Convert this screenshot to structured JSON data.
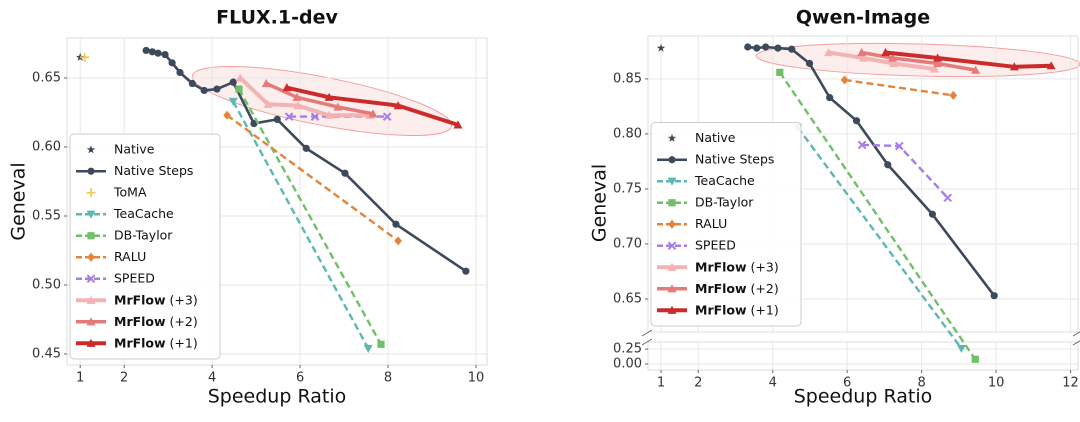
{
  "chart_data": [
    {
      "type": "line",
      "title": "FLUX.1-dev",
      "x_label": "Speedup Ratio",
      "y_label": "Geneval",
      "xlim": [
        0.7,
        10.25
      ],
      "xticks": [
        1,
        2,
        4,
        6,
        8,
        10
      ],
      "ylim": [
        0.442,
        0.679
      ],
      "yticks": [
        0.45,
        {
          "value": 0.5,
          "label": "0.50"
        },
        0.55,
        {
          "value": 0.6,
          "label": "0.60"
        },
        0.65
      ],
      "grid": true,
      "legend": "lower left",
      "series": [
        {
          "name": "Native",
          "color": "#3d4a5c",
          "marker": "star",
          "linestyle": "none",
          "linewidth": 0,
          "x": [
            1
          ],
          "values": [
            0.665
          ]
        },
        {
          "name": "Native Steps",
          "color": "#3d4a5c",
          "marker": "circle",
          "linestyle": "solid",
          "linewidth": 2.6,
          "x": [
            2.5,
            2.64,
            2.77,
            2.93,
            3.09,
            3.27,
            3.55,
            3.82,
            4.11,
            4.48,
            4.95,
            5.48,
            6.14,
            7.02,
            8.18,
            9.77
          ],
          "values": [
            0.67,
            0.669,
            0.668,
            0.667,
            0.661,
            0.654,
            0.646,
            0.641,
            0.642,
            0.647,
            0.617,
            0.62,
            0.599,
            0.581,
            0.544,
            0.51
          ]
        },
        {
          "name": "ToMA",
          "color": "#f5c85a",
          "marker": "plus",
          "linestyle": "none",
          "linewidth": 0,
          "x": [
            1.1
          ],
          "values": [
            0.665
          ]
        },
        {
          "name": "TeaCache",
          "color": "#5cb8b2",
          "marker": "tri-down",
          "linestyle": "dashed",
          "linewidth": 2.4,
          "x": [
            4.48,
            7.55
          ],
          "values": [
            0.633,
            0.454
          ]
        },
        {
          "name": "DB-Taylor",
          "color": "#72bf6a",
          "marker": "square",
          "linestyle": "dashed",
          "linewidth": 2.4,
          "x": [
            4.61,
            7.84
          ],
          "values": [
            0.642,
            0.457
          ]
        },
        {
          "name": "RALU",
          "color": "#e3843a",
          "marker": "diamond",
          "linestyle": "dashed",
          "linewidth": 2.4,
          "x": [
            4.34,
            8.23
          ],
          "values": [
            0.623,
            0.532
          ]
        },
        {
          "name": "SPEED",
          "color": "#a77be8",
          "marker": "x",
          "linestyle": "dashed",
          "linewidth": 2.4,
          "x": [
            5.75,
            6.34,
            7.98
          ],
          "values": [
            0.622,
            0.622,
            0.622
          ]
        },
        {
          "name": "MrFlow (+3)",
          "color": "#f4b3b3",
          "marker": "tri-up",
          "linestyle": "solid",
          "linewidth": 4,
          "x": [
            4.64,
            5.27,
            5.95,
            6.66,
            7.59
          ],
          "values": [
            0.65,
            0.631,
            0.63,
            0.623,
            0.623
          ]
        },
        {
          "name": "MrFlow (+2)",
          "color": "#e47b7b",
          "marker": "tri-up",
          "linestyle": "solid",
          "linewidth": 3.5,
          "x": [
            5.23,
            5.93,
            6.86,
            7.66
          ],
          "values": [
            0.646,
            0.636,
            0.629,
            0.624
          ]
        },
        {
          "name": "MrFlow (+1)",
          "color": "#cc2b2b",
          "marker": "tri-up",
          "linestyle": "solid",
          "linewidth": 4,
          "x": [
            5.7,
            6.66,
            8.23,
            9.59
          ],
          "values": [
            0.643,
            0.636,
            0.63,
            0.616
          ]
        }
      ]
    },
    {
      "type": "line",
      "title": "Qwen-Image",
      "x_label": "Speedup Ratio",
      "y_label": "Geneval",
      "xlim": [
        0.65,
        12.2
      ],
      "xticks": [
        1,
        2,
        4,
        6,
        8,
        10,
        12
      ],
      "ylim": [
        0.62,
        0.889
      ],
      "yticks": [
        0.65,
        {
          "value": 0.7,
          "label": "0.70"
        },
        0.75,
        {
          "value": 0.8,
          "label": "0.80"
        },
        0.85
      ],
      "y_break": {
        "ylim": [
          -0.1,
          0.37
        ],
        "yticks": [
          {
            "value": 0,
            "label": "0.00"
          },
          0.25
        ]
      },
      "grid": true,
      "legend": "lower left",
      "series": [
        {
          "name": "Native",
          "color": "#3d4a5c",
          "marker": "star",
          "linestyle": "none",
          "linewidth": 0,
          "x": [
            1
          ],
          "values": [
            0.878
          ]
        },
        {
          "name": "Native Steps",
          "color": "#3d4a5c",
          "marker": "circle",
          "linestyle": "solid",
          "linewidth": 2.6,
          "x": [
            3.33,
            3.57,
            3.81,
            4.14,
            4.51,
            4.99,
            5.53,
            6.25,
            7.09,
            8.29,
            9.95
          ],
          "values": [
            0.879,
            0.878,
            0.879,
            0.878,
            0.877,
            0.864,
            0.833,
            0.812,
            0.772,
            0.727,
            0.653
          ]
        },
        {
          "name": "TeaCache",
          "color": "#5cb8b2",
          "marker": "tri-down",
          "linestyle": "dashed",
          "linewidth": 2.4,
          "x": [
            4.67,
            9.07
          ],
          "values": [
            0.806,
            0.26
          ]
        },
        {
          "name": "DB-Taylor",
          "color": "#72bf6a",
          "marker": "square",
          "linestyle": "dashed",
          "linewidth": 2.4,
          "x": [
            4.19,
            9.44
          ],
          "values": [
            0.856,
            0.08
          ]
        },
        {
          "name": "RALU",
          "color": "#e3843a",
          "marker": "diamond",
          "linestyle": "dashed",
          "linewidth": 2.4,
          "x": [
            5.93,
            8.85
          ],
          "values": [
            0.849,
            0.835
          ]
        },
        {
          "name": "SPEED",
          "color": "#a77be8",
          "marker": "x",
          "linestyle": "dashed",
          "linewidth": 2.4,
          "x": [
            6.4,
            7.4,
            8.7
          ],
          "values": [
            0.79,
            0.789,
            0.742
          ]
        },
        {
          "name": "MrFlow (+3)",
          "color": "#f4b3b3",
          "marker": "tri-up",
          "linestyle": "solid",
          "linewidth": 4,
          "x": [
            5.5,
            6.44,
            7.25,
            8.35
          ],
          "values": [
            0.874,
            0.869,
            0.864,
            0.859
          ]
        },
        {
          "name": "MrFlow (+2)",
          "color": "#e47b7b",
          "marker": "tri-up",
          "linestyle": "solid",
          "linewidth": 3.5,
          "x": [
            6.39,
            7.22,
            8.43,
            9.45
          ],
          "values": [
            0.874,
            0.869,
            0.864,
            0.858
          ]
        },
        {
          "name": "MrFlow (+1)",
          "color": "#cc2b2b",
          "marker": "tri-up",
          "linestyle": "solid",
          "linewidth": 4,
          "x": [
            7.03,
            8.43,
            10.49,
            11.48
          ],
          "values": [
            0.874,
            0.869,
            0.861,
            0.862
          ]
        }
      ]
    }
  ]
}
